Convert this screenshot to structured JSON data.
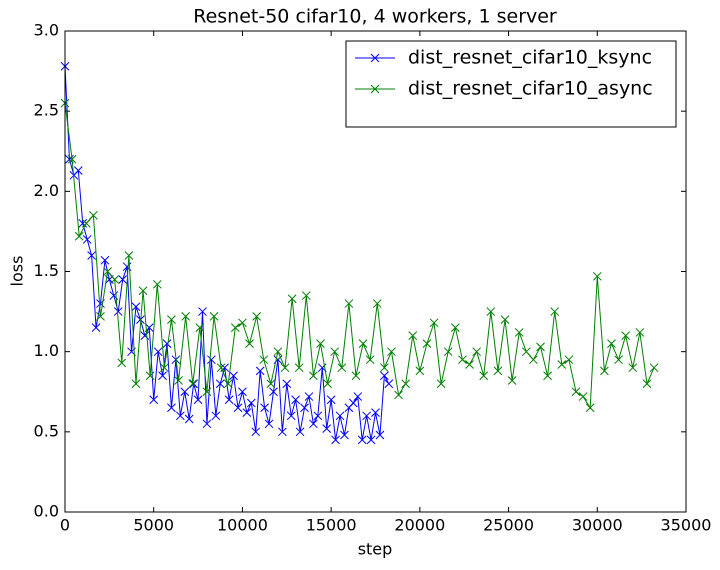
{
  "chart_data": {
    "type": "line",
    "title": "Resnet-50 cifar10, 4 workers, 1 server",
    "x_label": "step",
    "y_label": "loss",
    "xlim": [
      0,
      35000
    ],
    "xticks": [
      0,
      5000,
      10000,
      15000,
      20000,
      25000,
      30000,
      35000
    ],
    "ylim": [
      0,
      3.0
    ],
    "yticks": [
      {
        "value": 0,
        "label": "0.0"
      },
      0.5,
      {
        "value": 1,
        "label": "1.0"
      },
      1.5,
      {
        "value": 2,
        "label": "2.0"
      },
      2.5,
      {
        "value": 3,
        "label": "3.0"
      }
    ],
    "legend": "upper right",
    "marker": "x",
    "series": [
      {
        "name": "dist_resnet_cifar10_ksync",
        "color": "#0000ff",
        "x": [
          0,
          250,
          500,
          750,
          1000,
          1250,
          1500,
          1750,
          2000,
          2250,
          2500,
          2750,
          3000,
          3250,
          3500,
          3750,
          4000,
          4250,
          4500,
          4750,
          5000,
          5250,
          5500,
          5750,
          6000,
          6250,
          6500,
          6750,
          7000,
          7250,
          7500,
          7750,
          8000,
          8250,
          8500,
          8750,
          9000,
          9250,
          9500,
          9750,
          10000,
          10250,
          10500,
          10750,
          11000,
          11250,
          11500,
          11750,
          12000,
          12250,
          12500,
          12750,
          13000,
          13250,
          13500,
          13750,
          14000,
          14250,
          14500,
          14750,
          15000,
          15250,
          15500,
          15750,
          16000,
          16250,
          16500,
          16750,
          17000,
          17250,
          17500,
          17750,
          18000,
          18250
        ],
        "values": [
          2.78,
          2.2,
          2.1,
          2.13,
          1.8,
          1.7,
          1.6,
          1.15,
          1.3,
          1.57,
          1.45,
          1.35,
          1.25,
          1.45,
          1.53,
          1.0,
          1.28,
          1.2,
          1.1,
          1.15,
          0.7,
          1.0,
          0.85,
          1.05,
          0.65,
          0.95,
          0.6,
          0.75,
          0.58,
          0.8,
          0.7,
          1.25,
          0.55,
          0.95,
          0.6,
          0.8,
          0.9,
          0.7,
          0.85,
          0.65,
          0.75,
          0.62,
          0.68,
          0.5,
          0.88,
          0.65,
          0.55,
          0.75,
          0.95,
          0.5,
          0.8,
          0.6,
          0.7,
          0.5,
          0.65,
          0.72,
          0.55,
          0.6,
          0.9,
          0.52,
          0.7,
          0.45,
          0.6,
          0.48,
          0.65,
          0.68,
          0.72,
          0.45,
          0.6,
          0.45,
          0.62,
          0.48,
          0.85,
          0.8
        ]
      },
      {
        "name": "dist_resnet_cifar10_async",
        "color": "#008000",
        "x": [
          0,
          400,
          800,
          1200,
          1600,
          2000,
          2400,
          2800,
          3200,
          3600,
          4000,
          4400,
          4800,
          5200,
          5600,
          6000,
          6400,
          6800,
          7200,
          7600,
          8000,
          8400,
          8800,
          9200,
          9600,
          10000,
          10400,
          10800,
          11200,
          11600,
          12000,
          12400,
          12800,
          13200,
          13600,
          14000,
          14400,
          14800,
          15200,
          15600,
          16000,
          16400,
          16800,
          17200,
          17600,
          18000,
          18400,
          18800,
          19200,
          19600,
          20000,
          20400,
          20800,
          21200,
          21600,
          22000,
          22400,
          22800,
          23200,
          23600,
          24000,
          24400,
          24800,
          25200,
          25600,
          26000,
          26400,
          26800,
          27200,
          27600,
          28000,
          28400,
          28800,
          29200,
          29600,
          30000,
          30400,
          30800,
          31200,
          31600,
          32000,
          32400,
          32800,
          33200
        ],
        "values": [
          2.55,
          2.2,
          1.72,
          1.8,
          1.85,
          1.22,
          1.5,
          1.45,
          0.93,
          1.6,
          0.8,
          1.38,
          0.85,
          1.42,
          0.9,
          1.2,
          0.82,
          1.22,
          0.8,
          1.15,
          0.75,
          1.22,
          0.9,
          0.8,
          1.15,
          1.18,
          1.05,
          1.22,
          0.95,
          0.8,
          1.0,
          0.9,
          1.33,
          0.9,
          1.35,
          0.85,
          1.05,
          0.8,
          1.0,
          0.9,
          1.3,
          0.85,
          1.05,
          0.95,
          1.3,
          0.9,
          1.0,
          0.73,
          0.8,
          1.1,
          0.88,
          1.05,
          1.18,
          0.8,
          1.0,
          1.15,
          0.95,
          0.92,
          1.0,
          0.85,
          1.25,
          0.88,
          1.2,
          0.82,
          1.12,
          1.0,
          0.95,
          1.03,
          0.85,
          1.25,
          0.92,
          0.95,
          0.75,
          0.72,
          0.65,
          1.47,
          0.88,
          1.05,
          0.95,
          1.1,
          0.9,
          1.12,
          0.8,
          0.9
        ]
      }
    ]
  }
}
